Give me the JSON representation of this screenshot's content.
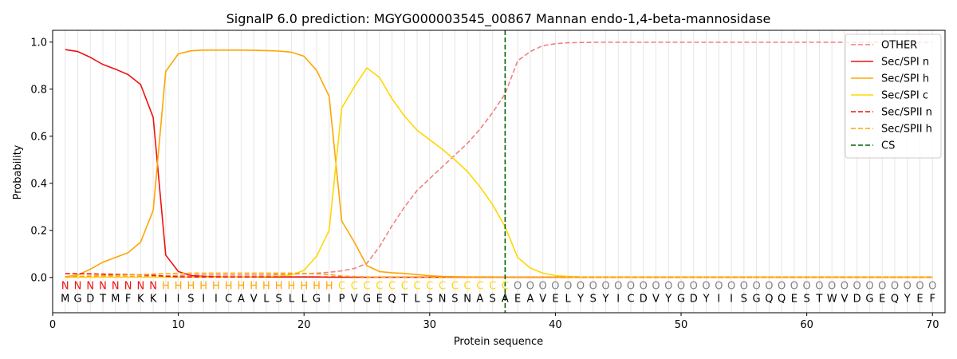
{
  "chart_data": {
    "type": "line",
    "title": "SignalP 6.0 prediction: MGYG000003545_00867 Mannan endo-1,4-beta-mannosidase",
    "xlabel": "Protein sequence",
    "ylabel": "Probability",
    "xlim": [
      0,
      71
    ],
    "ylim": [
      -0.15,
      1.05
    ],
    "xticks": [
      0,
      10,
      20,
      30,
      40,
      50,
      60,
      70
    ],
    "yticks": [
      0.0,
      0.2,
      0.4,
      0.6,
      0.8,
      1.0
    ],
    "xtick_labels": [
      "0",
      "10",
      "20",
      "30",
      "40",
      "50",
      "60",
      "70"
    ],
    "ytick_labels": [
      "0.0",
      "0.2",
      "0.4",
      "0.6",
      "0.8",
      "1.0"
    ],
    "grid": "vertical lines at each residue",
    "legend_position": "top-right",
    "x": [
      1,
      2,
      3,
      4,
      5,
      6,
      7,
      8,
      9,
      10,
      11,
      12,
      13,
      14,
      15,
      16,
      17,
      18,
      19,
      20,
      21,
      22,
      23,
      24,
      25,
      26,
      27,
      28,
      29,
      30,
      31,
      32,
      33,
      34,
      35,
      36,
      37,
      38,
      39,
      40,
      41,
      42,
      43,
      44,
      45,
      46,
      47,
      48,
      49,
      50,
      51,
      52,
      53,
      54,
      55,
      56,
      57,
      58,
      59,
      60,
      61,
      62,
      63,
      64,
      65,
      66,
      67,
      68,
      69,
      70
    ],
    "series": [
      {
        "name": "OTHER",
        "color": "#f08080",
        "dash": "dashed",
        "values": [
          0.003,
          0.003,
          0.003,
          0.003,
          0.003,
          0.003,
          0.004,
          0.005,
          0.006,
          0.008,
          0.01,
          0.01,
          0.01,
          0.01,
          0.01,
          0.01,
          0.01,
          0.012,
          0.014,
          0.016,
          0.018,
          0.022,
          0.028,
          0.038,
          0.06,
          0.13,
          0.22,
          0.3,
          0.37,
          0.42,
          0.47,
          0.52,
          0.57,
          0.63,
          0.7,
          0.78,
          0.92,
          0.96,
          0.985,
          0.993,
          0.997,
          0.998,
          0.999,
          0.999,
          0.999,
          0.999,
          0.999,
          0.999,
          0.999,
          0.999,
          0.999,
          0.999,
          0.999,
          0.999,
          0.999,
          0.999,
          0.999,
          0.999,
          0.999,
          0.999,
          0.999,
          0.999,
          0.999,
          0.999,
          0.999,
          0.999,
          0.999,
          0.999,
          0.999,
          0.999
        ]
      },
      {
        "name": "Sec/SPI n",
        "color": "#ee1111",
        "dash": "solid",
        "values": [
          0.968,
          0.96,
          0.935,
          0.905,
          0.885,
          0.862,
          0.82,
          0.68,
          0.095,
          0.025,
          0.008,
          0.004,
          0.003,
          0.002,
          0.002,
          0.002,
          0.002,
          0.002,
          0.002,
          0.002,
          0.002,
          0.001,
          0.001,
          0.001,
          0.001,
          0.001,
          0.001,
          0.001,
          0.001,
          0.001,
          0.001,
          0.001,
          0.001,
          0.001,
          0.001,
          0.001,
          0.001,
          0.001,
          0.001,
          0.001,
          0.001,
          0.001,
          0.001,
          0.001,
          0.001,
          0.001,
          0.001,
          0.001,
          0.001,
          0.001,
          0.001,
          0.001,
          0.001,
          0.001,
          0.001,
          0.001,
          0.001,
          0.001,
          0.001,
          0.001,
          0.001,
          0.001,
          0.001,
          0.001,
          0.001,
          0.001,
          0.001,
          0.001,
          0.001,
          0.001
        ]
      },
      {
        "name": "Sec/SPI h",
        "color": "#ffa500",
        "dash": "solid",
        "values": [
          0.003,
          0.01,
          0.035,
          0.065,
          0.085,
          0.105,
          0.15,
          0.285,
          0.875,
          0.95,
          0.963,
          0.966,
          0.966,
          0.966,
          0.966,
          0.965,
          0.964,
          0.962,
          0.957,
          0.94,
          0.88,
          0.77,
          0.24,
          0.15,
          0.05,
          0.025,
          0.02,
          0.017,
          0.012,
          0.007,
          0.004,
          0.003,
          0.002,
          0.002,
          0.002,
          0.001,
          0.001,
          0.001,
          0.001,
          0.001,
          0.001,
          0.001,
          0.001,
          0.001,
          0.001,
          0.001,
          0.001,
          0.001,
          0.001,
          0.001,
          0.001,
          0.001,
          0.001,
          0.001,
          0.001,
          0.001,
          0.001,
          0.001,
          0.001,
          0.001,
          0.001,
          0.001,
          0.001,
          0.001,
          0.001,
          0.001,
          0.001,
          0.001,
          0.001,
          0.001
        ]
      },
      {
        "name": "Sec/SPI c",
        "color": "#ffd700",
        "dash": "solid",
        "values": [
          0.001,
          0.001,
          0.001,
          0.001,
          0.001,
          0.001,
          0.001,
          0.001,
          0.001,
          0.001,
          0.002,
          0.002,
          0.002,
          0.002,
          0.002,
          0.003,
          0.004,
          0.006,
          0.01,
          0.03,
          0.09,
          0.2,
          0.72,
          0.81,
          0.89,
          0.85,
          0.76,
          0.685,
          0.625,
          0.585,
          0.545,
          0.5,
          0.45,
          0.385,
          0.31,
          0.215,
          0.085,
          0.04,
          0.018,
          0.008,
          0.004,
          0.002,
          0.001,
          0.001,
          0.001,
          0.001,
          0.001,
          0.001,
          0.001,
          0.001,
          0.001,
          0.001,
          0.001,
          0.001,
          0.001,
          0.001,
          0.001,
          0.001,
          0.001,
          0.001,
          0.001,
          0.001,
          0.001,
          0.001,
          0.001,
          0.001,
          0.001,
          0.001,
          0.001,
          0.001
        ]
      },
      {
        "name": "Sec/SPII n",
        "color": "#ee1111",
        "dash": "dashed",
        "values": [
          0.016,
          0.016,
          0.015,
          0.014,
          0.013,
          0.012,
          0.011,
          0.009,
          0.005,
          0.003,
          0.002,
          0.002,
          0.002,
          0.002,
          0.002,
          0.002,
          0.002,
          0.002,
          0.002,
          0.002,
          0.002,
          0.002,
          0.002,
          0.002,
          0.001,
          0.001,
          0.001,
          0.001,
          0.001,
          0.001,
          0.001,
          0.001,
          0.001,
          0.001,
          0.001,
          0.001,
          0.001,
          0.001,
          0.001,
          0.001,
          0.001,
          0.001,
          0.001,
          0.001,
          0.001,
          0.001,
          0.001,
          0.001,
          0.001,
          0.001,
          0.001,
          0.001,
          0.001,
          0.001,
          0.001,
          0.001,
          0.001,
          0.001,
          0.001,
          0.001,
          0.001,
          0.001,
          0.001,
          0.001,
          0.001,
          0.001,
          0.001,
          0.001,
          0.001,
          0.001
        ]
      },
      {
        "name": "Sec/SPII h",
        "color": "#ffa500",
        "dash": "dashed",
        "values": [
          0.002,
          0.004,
          0.006,
          0.008,
          0.009,
          0.01,
          0.012,
          0.014,
          0.016,
          0.017,
          0.018,
          0.018,
          0.018,
          0.018,
          0.018,
          0.018,
          0.018,
          0.018,
          0.018,
          0.017,
          0.015,
          0.012,
          0.006,
          0.004,
          0.002,
          0.001,
          0.001,
          0.001,
          0.001,
          0.001,
          0.001,
          0.001,
          0.001,
          0.001,
          0.001,
          0.001,
          0.001,
          0.001,
          0.001,
          0.001,
          0.001,
          0.001,
          0.001,
          0.001,
          0.001,
          0.001,
          0.001,
          0.001,
          0.001,
          0.001,
          0.001,
          0.001,
          0.001,
          0.001,
          0.001,
          0.001,
          0.001,
          0.001,
          0.001,
          0.001,
          0.001,
          0.001,
          0.001,
          0.001,
          0.001,
          0.001,
          0.001,
          0.001,
          0.001,
          0.001
        ]
      }
    ],
    "cs": {
      "name": "CS",
      "x": 36,
      "color": "#006400",
      "dash": "dashed"
    },
    "sequence": [
      "M",
      "G",
      "D",
      "T",
      "M",
      "F",
      "K",
      "K",
      "I",
      "I",
      "S",
      "I",
      "I",
      "C",
      "A",
      "V",
      "L",
      "S",
      "L",
      "L",
      "G",
      "I",
      "P",
      "V",
      "G",
      "E",
      "Q",
      "T",
      "L",
      "S",
      "N",
      "S",
      "N",
      "A",
      "S",
      "A",
      "E",
      "A",
      "V",
      "E",
      "L",
      "Y",
      "S",
      "Y",
      "I",
      "C",
      "D",
      "V",
      "Y",
      "G",
      "D",
      "Y",
      "I",
      "I",
      "S",
      "G",
      "Q",
      "Q",
      "E",
      "S",
      "T",
      "W",
      "V",
      "D",
      "G",
      "E",
      "Q",
      "Y",
      "E",
      "F"
    ],
    "labels": [
      "N",
      "N",
      "N",
      "N",
      "N",
      "N",
      "N",
      "N",
      "H",
      "H",
      "H",
      "H",
      "H",
      "H",
      "H",
      "H",
      "H",
      "H",
      "H",
      "H",
      "H",
      "H",
      "C",
      "C",
      "C",
      "C",
      "C",
      "C",
      "C",
      "C",
      "C",
      "C",
      "C",
      "C",
      "C",
      "C",
      "O",
      "O",
      "O",
      "O",
      "O",
      "O",
      "O",
      "O",
      "O",
      "O",
      "O",
      "O",
      "O",
      "O",
      "O",
      "O",
      "O",
      "O",
      "O",
      "O",
      "O",
      "O",
      "O",
      "O",
      "O",
      "O",
      "O",
      "O",
      "O",
      "O",
      "O",
      "O",
      "O",
      "O"
    ],
    "label_colors": {
      "N": "#ee1111",
      "H": "#ffa500",
      "C": "#ffd700",
      "O": "#808080"
    }
  }
}
